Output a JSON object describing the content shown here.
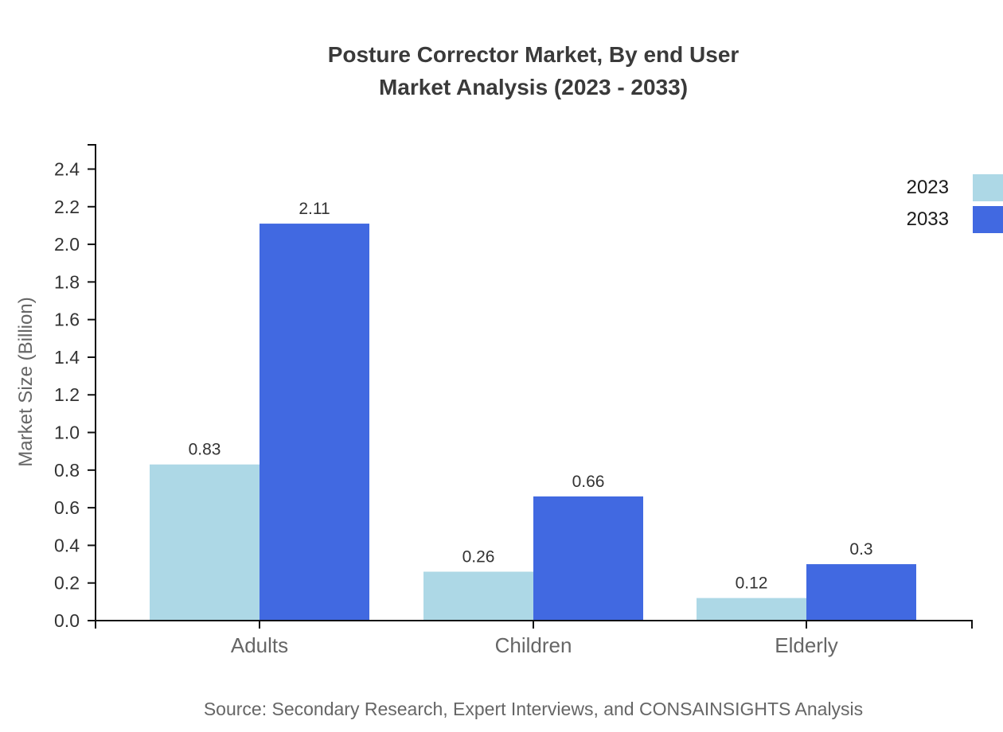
{
  "title": {
    "line1": "Posture Corrector Market, By end User",
    "line2": "Market Analysis (2023 - 2033)"
  },
  "legend": {
    "position": "top-right",
    "items": [
      {
        "label": "2023",
        "color": "#ADD8E6"
      },
      {
        "label": "2033",
        "color": "#4169E1"
      }
    ]
  },
  "footer": {
    "source": "Source: Secondary Research, Expert Interviews, and CONSAINSIGHTS Analysis"
  },
  "chart_data": {
    "type": "bar",
    "title": "Posture Corrector Market, By end User Market Analysis (2023 - 2033)",
    "categories": [
      "Adults",
      "Children",
      "Elderly"
    ],
    "series": [
      {
        "name": "2023",
        "color": "#ADD8E6",
        "values": [
          0.83,
          0.26,
          0.12
        ]
      },
      {
        "name": "2033",
        "color": "#4169E1",
        "values": [
          2.11,
          0.66,
          0.3
        ]
      }
    ],
    "value_labels": [
      [
        "0.83",
        "0.26",
        "0.12"
      ],
      [
        "2.11",
        "0.66",
        "0.3"
      ]
    ],
    "xlabel": "",
    "ylabel": "Market Size (Billion)",
    "ylim": [
      0,
      2.53
    ],
    "yticks": [
      "0.0",
      "0.2",
      "0.4",
      "0.6",
      "0.8",
      "1.0",
      "1.2",
      "1.4",
      "1.6",
      "1.8",
      "2.0",
      "2.2",
      "2.4"
    ],
    "grid": false,
    "legend_position": "top-right"
  },
  "colors": {
    "axis": "#111111",
    "tick_label": "#333333",
    "value_label": "#333333",
    "category_label": "#666666",
    "background": "#ffffff"
  }
}
